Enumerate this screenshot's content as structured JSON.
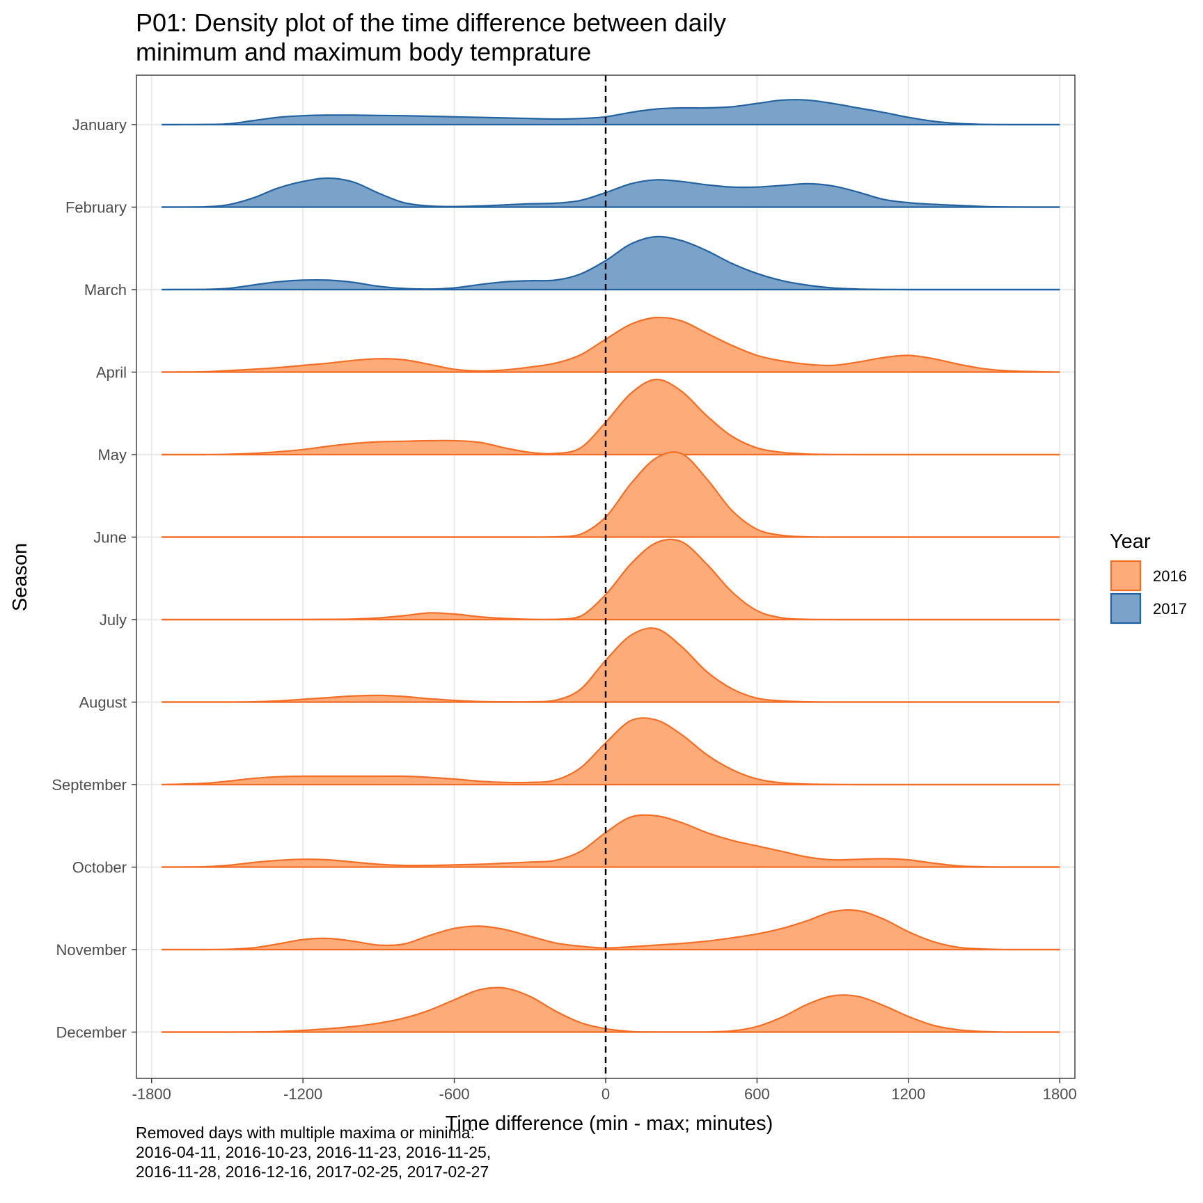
{
  "title_lines": [
    "P01: Density plot of the time difference between daily",
    "minimum and maximum body temprature"
  ],
  "caption_lines": [
    "Removed days with multiple maxima or minima:",
    "2016-04-11, 2016-10-23, 2016-11-23, 2016-11-25,",
    "2016-11-28, 2016-12-16, 2017-02-25, 2017-02-27"
  ],
  "chart_data": {
    "type": "area",
    "subtype": "ridgeline-density",
    "xlabel": "Time difference (min - max; minutes)",
    "ylabel": "Season",
    "xlim": [
      -1860,
      1860
    ],
    "x_ticks": [
      -1800,
      -1200,
      -600,
      0,
      600,
      1200,
      1800
    ],
    "x_tick_labels": [
      "-1800",
      "-1200",
      "-600",
      "0",
      "600",
      "1200",
      "1800"
    ],
    "reference_line": {
      "x": 0,
      "style": "dashed",
      "color": "#000000"
    },
    "grid": true,
    "legend": {
      "title": "Year",
      "position": "right",
      "items": [
        {
          "label": "2016",
          "fill": "#FDAC79",
          "stroke": "#F46D25"
        },
        {
          "label": "2017",
          "fill": "#7BA3CA",
          "stroke": "#2262A0"
        }
      ]
    },
    "categories": [
      "January",
      "February",
      "March",
      "April",
      "May",
      "June",
      "July",
      "August",
      "September",
      "October",
      "November",
      "December"
    ],
    "x": [
      -1760,
      -1600,
      -1500,
      -1400,
      -1300,
      -1200,
      -1100,
      -1000,
      -900,
      -800,
      -700,
      -600,
      -500,
      -400,
      -300,
      -200,
      -100,
      0,
      100,
      200,
      300,
      400,
      500,
      600,
      700,
      800,
      900,
      1000,
      1100,
      1200,
      1300,
      1400,
      1500,
      1600,
      1800
    ],
    "series": [
      {
        "category": "January",
        "year": "2017",
        "density": [
          0,
          0.002,
          0.012,
          0.07,
          0.13,
          0.16,
          0.17,
          0.17,
          0.165,
          0.16,
          0.15,
          0.14,
          0.13,
          0.12,
          0.11,
          0.1,
          0.11,
          0.14,
          0.22,
          0.28,
          0.3,
          0.3,
          0.32,
          0.38,
          0.44,
          0.44,
          0.38,
          0.3,
          0.22,
          0.13,
          0.06,
          0.02,
          0.004,
          0,
          0
        ]
      },
      {
        "category": "February",
        "year": "2017",
        "density": [
          0,
          0.004,
          0.04,
          0.16,
          0.34,
          0.46,
          0.52,
          0.45,
          0.25,
          0.08,
          0.02,
          0.01,
          0.02,
          0.04,
          0.06,
          0.07,
          0.12,
          0.26,
          0.42,
          0.49,
          0.46,
          0.4,
          0.36,
          0.36,
          0.39,
          0.42,
          0.38,
          0.27,
          0.14,
          0.08,
          0.05,
          0.03,
          0.01,
          0.002,
          0
        ]
      },
      {
        "category": "March",
        "year": "2017",
        "density": [
          0,
          0.004,
          0.02,
          0.08,
          0.14,
          0.17,
          0.17,
          0.13,
          0.06,
          0.02,
          0.01,
          0.03,
          0.09,
          0.14,
          0.16,
          0.17,
          0.28,
          0.52,
          0.82,
          0.95,
          0.88,
          0.7,
          0.47,
          0.29,
          0.16,
          0.08,
          0.03,
          0.01,
          0.003,
          0,
          0,
          0,
          0,
          0,
          0
        ]
      },
      {
        "category": "April",
        "year": "2016",
        "density": [
          0,
          0.005,
          0.025,
          0.05,
          0.08,
          0.12,
          0.16,
          0.21,
          0.24,
          0.22,
          0.14,
          0.05,
          0.02,
          0.04,
          0.09,
          0.16,
          0.31,
          0.59,
          0.86,
          0.98,
          0.92,
          0.7,
          0.48,
          0.3,
          0.2,
          0.14,
          0.12,
          0.18,
          0.26,
          0.3,
          0.24,
          0.14,
          0.06,
          0.02,
          0
        ]
      },
      {
        "category": "May",
        "year": "2016",
        "density": [
          0,
          0,
          0.005,
          0.02,
          0.05,
          0.09,
          0.15,
          0.2,
          0.23,
          0.24,
          0.25,
          0.25,
          0.22,
          0.12,
          0.04,
          0.02,
          0.12,
          0.58,
          1.1,
          1.35,
          1.14,
          0.7,
          0.33,
          0.12,
          0.04,
          0.01,
          0.003,
          0,
          0,
          0,
          0,
          0,
          0,
          0,
          0
        ]
      },
      {
        "category": "June",
        "year": "2016",
        "density": [
          0,
          0,
          0,
          0,
          0,
          0,
          0,
          0,
          0,
          0,
          0,
          0,
          0,
          0,
          0,
          0.005,
          0.05,
          0.36,
          0.96,
          1.42,
          1.5,
          1.05,
          0.48,
          0.14,
          0.03,
          0.005,
          0,
          0,
          0,
          0,
          0,
          0,
          0,
          0,
          0
        ]
      },
      {
        "category": "July",
        "year": "2016",
        "density": [
          0,
          0,
          0,
          0,
          0,
          0.003,
          0.005,
          0.01,
          0.03,
          0.07,
          0.12,
          0.1,
          0.05,
          0.02,
          0.005,
          0.005,
          0.06,
          0.45,
          1.0,
          1.38,
          1.4,
          1.0,
          0.5,
          0.16,
          0.03,
          0.005,
          0,
          0,
          0,
          0,
          0,
          0,
          0,
          0,
          0
        ]
      },
      {
        "category": "August",
        "year": "2016",
        "density": [
          0,
          0,
          0,
          0.005,
          0.02,
          0.05,
          0.08,
          0.11,
          0.12,
          0.1,
          0.06,
          0.03,
          0.01,
          0.005,
          0.005,
          0.03,
          0.23,
          0.75,
          1.2,
          1.32,
          1.0,
          0.55,
          0.24,
          0.07,
          0.02,
          0.005,
          0,
          0,
          0,
          0,
          0,
          0,
          0,
          0,
          0
        ]
      },
      {
        "category": "September",
        "year": "2016",
        "density": [
          0,
          0.02,
          0.06,
          0.11,
          0.14,
          0.15,
          0.15,
          0.15,
          0.15,
          0.15,
          0.13,
          0.1,
          0.06,
          0.04,
          0.04,
          0.08,
          0.3,
          0.75,
          1.15,
          1.16,
          0.9,
          0.54,
          0.27,
          0.1,
          0.03,
          0.01,
          0.003,
          0,
          0,
          0,
          0,
          0,
          0,
          0,
          0
        ]
      },
      {
        "category": "October",
        "year": "2016",
        "density": [
          0,
          0.005,
          0.03,
          0.08,
          0.12,
          0.14,
          0.13,
          0.09,
          0.05,
          0.03,
          0.03,
          0.04,
          0.05,
          0.07,
          0.09,
          0.12,
          0.28,
          0.62,
          0.9,
          0.92,
          0.8,
          0.62,
          0.48,
          0.38,
          0.28,
          0.18,
          0.13,
          0.14,
          0.15,
          0.13,
          0.07,
          0.02,
          0.005,
          0,
          0
        ]
      },
      {
        "category": "November",
        "year": "2016",
        "density": [
          0,
          0,
          0.005,
          0.03,
          0.1,
          0.18,
          0.2,
          0.15,
          0.08,
          0.1,
          0.25,
          0.38,
          0.42,
          0.36,
          0.24,
          0.12,
          0.06,
          0.03,
          0.05,
          0.08,
          0.11,
          0.15,
          0.21,
          0.28,
          0.38,
          0.52,
          0.68,
          0.7,
          0.55,
          0.32,
          0.14,
          0.04,
          0.01,
          0,
          0
        ]
      },
      {
        "category": "December",
        "year": "2016",
        "density": [
          0,
          0,
          0,
          0.003,
          0.01,
          0.03,
          0.06,
          0.1,
          0.16,
          0.25,
          0.39,
          0.58,
          0.76,
          0.79,
          0.64,
          0.38,
          0.17,
          0.06,
          0.01,
          0.003,
          0.002,
          0.003,
          0.02,
          0.1,
          0.27,
          0.5,
          0.65,
          0.64,
          0.48,
          0.28,
          0.12,
          0.04,
          0.01,
          0,
          0
        ]
      }
    ]
  }
}
